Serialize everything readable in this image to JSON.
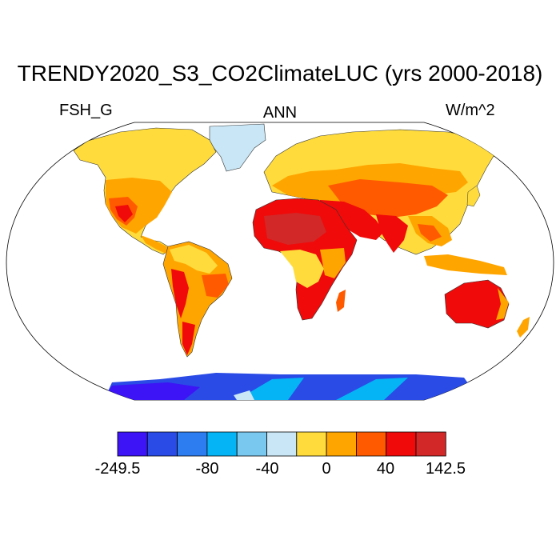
{
  "title": "TRENDY2020_S3_CO2ClimateLUC (yrs 2000-2018)",
  "subtitle_left": "FSH_G",
  "subtitle_center": "ANN",
  "subtitle_right": "W/m^2",
  "colorbar": {
    "colors": [
      "#3c14f5",
      "#2a4be6",
      "#2e7df0",
      "#05b4f5",
      "#78c8f0",
      "#c8e6f5",
      "#ffdc3c",
      "#ffa500",
      "#ff5a00",
      "#f00a0a",
      "#d22828"
    ],
    "labels": [
      "-249.5",
      "-80",
      "-40",
      "0",
      "40",
      "142.5"
    ]
  },
  "map_colors": {
    "ocean": "#ffffff",
    "warm_light": "#ffdc3c",
    "orange": "#ffa500",
    "red_orange": "#ff5a00",
    "red": "#f00a0a",
    "dark_red": "#d22828",
    "ice_light": "#c8e6f5",
    "antarctica_blue": "#2a4be6",
    "antarctica_violet": "#3c14f5",
    "antarctica_cyan": "#05b4f5"
  }
}
